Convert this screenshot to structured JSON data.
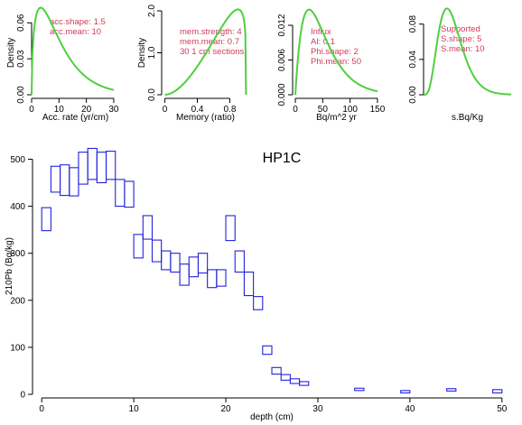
{
  "colors": {
    "density_curve": "#4fcf3f",
    "annotation": "#d23a5a",
    "box": "#2222dd",
    "axis": "#000000"
  },
  "chart_data": [
    {
      "type": "line",
      "role": "prior-panel",
      "xlabel": "Acc. rate (yr/cm)",
      "ylabel": "Density",
      "xlim": [
        0,
        32
      ],
      "ylim": [
        0,
        0.07
      ],
      "x_ticks": [
        0,
        10,
        20,
        30
      ],
      "y_ticks": [
        0.0,
        0.03,
        0.06
      ],
      "y_tick_labels": [
        "0.00",
        "0.03",
        "0.06"
      ],
      "annotations": [
        "acc.shape:  1.5",
        "acc.mean:  10"
      ],
      "curve": {
        "family": "gamma",
        "shape": 1.5,
        "mean": 10,
        "x_range": [
          0,
          30
        ]
      }
    },
    {
      "type": "line",
      "role": "prior-panel",
      "xlabel": "Memory (ratio)",
      "ylabel": "Density",
      "xlim": [
        -0.04,
        1.04
      ],
      "ylim": [
        0,
        2.0
      ],
      "x_ticks": [
        0.0,
        0.4,
        0.8
      ],
      "y_ticks": [
        0.0,
        1.0,
        2.0
      ],
      "y_tick_labels": [
        "0.0",
        "1.0",
        "2.0"
      ],
      "annotations": [
        "mem.strength: 4",
        "mem.mean: 0.7",
        "30 1 cm sections"
      ],
      "curve": {
        "family": "beta",
        "strength": 4,
        "mean": 0.7,
        "x_range": [
          0,
          1
        ]
      }
    },
    {
      "type": "line",
      "role": "prior-panel",
      "xlabel": "Bq/m^2 yr",
      "ylabel": "",
      "xlim": [
        -5,
        155
      ],
      "ylim": [
        0,
        0.0145
      ],
      "x_ticks": [
        0,
        50,
        100,
        150
      ],
      "y_ticks": [
        0.0,
        0.006,
        0.012
      ],
      "y_tick_labels": [
        "0.000",
        "0.006",
        "0.012"
      ],
      "annotations": [
        "Influx",
        "Al:  0.1",
        "Phi.shape:  2",
        "Phi.mean:  50"
      ],
      "curve": {
        "family": "gamma",
        "shape": 2,
        "mean": 50,
        "x_range": [
          0,
          150
        ]
      }
    },
    {
      "type": "line",
      "role": "prior-panel",
      "xlabel": "s.Bq/Kg",
      "ylabel": "",
      "xlim": [
        0,
        30
      ],
      "ylim": [
        0,
        0.095
      ],
      "x_ticks": [],
      "y_ticks": [
        0.0,
        0.04,
        0.08
      ],
      "y_tick_labels": [
        "0.00",
        "0.04",
        "0.08"
      ],
      "annotations": [
        "Supported",
        "S.shape:  5",
        "S.mean:  10"
      ],
      "curve": {
        "family": "gamma",
        "shape": 5,
        "mean": 10,
        "x_range": [
          0,
          30
        ]
      }
    },
    {
      "type": "box",
      "title": "HP1C",
      "xlabel": "depth (cm)",
      "ylabel": "210Pb (Bq/kg)",
      "xlim": [
        -1,
        51
      ],
      "ylim": [
        0,
        545
      ],
      "x_ticks": [
        0,
        10,
        20,
        30,
        40,
        50
      ],
      "y_ticks": [
        0,
        100,
        200,
        300,
        400,
        500
      ],
      "boxes": [
        {
          "x0": 0,
          "x1": 1,
          "y0": 348,
          "y1": 397
        },
        {
          "x0": 1,
          "x1": 2,
          "y0": 430,
          "y1": 485
        },
        {
          "x0": 2,
          "x1": 3,
          "y0": 423,
          "y1": 488
        },
        {
          "x0": 3,
          "x1": 4,
          "y0": 422,
          "y1": 482
        },
        {
          "x0": 4,
          "x1": 5,
          "y0": 447,
          "y1": 515
        },
        {
          "x0": 5,
          "x1": 6,
          "y0": 457,
          "y1": 523
        },
        {
          "x0": 6,
          "x1": 7,
          "y0": 450,
          "y1": 515
        },
        {
          "x0": 7,
          "x1": 8,
          "y0": 457,
          "y1": 517
        },
        {
          "x0": 8,
          "x1": 9,
          "y0": 400,
          "y1": 457
        },
        {
          "x0": 9,
          "x1": 10,
          "y0": 398,
          "y1": 453
        },
        {
          "x0": 10,
          "x1": 11,
          "y0": 290,
          "y1": 340
        },
        {
          "x0": 11,
          "x1": 12,
          "y0": 330,
          "y1": 380
        },
        {
          "x0": 12,
          "x1": 13,
          "y0": 282,
          "y1": 328
        },
        {
          "x0": 13,
          "x1": 14,
          "y0": 265,
          "y1": 305
        },
        {
          "x0": 14,
          "x1": 15,
          "y0": 260,
          "y1": 300
        },
        {
          "x0": 15,
          "x1": 16,
          "y0": 232,
          "y1": 277
        },
        {
          "x0": 16,
          "x1": 17,
          "y0": 250,
          "y1": 292
        },
        {
          "x0": 17,
          "x1": 18,
          "y0": 258,
          "y1": 300
        },
        {
          "x0": 18,
          "x1": 19,
          "y0": 227,
          "y1": 265
        },
        {
          "x0": 19,
          "x1": 20,
          "y0": 230,
          "y1": 265
        },
        {
          "x0": 20,
          "x1": 21,
          "y0": 327,
          "y1": 380
        },
        {
          "x0": 21,
          "x1": 22,
          "y0": 260,
          "y1": 305
        },
        {
          "x0": 22,
          "x1": 23,
          "y0": 210,
          "y1": 260
        },
        {
          "x0": 23,
          "x1": 24,
          "y0": 180,
          "y1": 208
        },
        {
          "x0": 24,
          "x1": 25,
          "y0": 85,
          "y1": 103
        },
        {
          "x0": 25,
          "x1": 26,
          "y0": 43,
          "y1": 57
        },
        {
          "x0": 26,
          "x1": 27,
          "y0": 30,
          "y1": 42
        },
        {
          "x0": 27,
          "x1": 28,
          "y0": 23,
          "y1": 33
        },
        {
          "x0": 28,
          "x1": 29,
          "y0": 19,
          "y1": 27
        },
        {
          "x0": 34,
          "x1": 35,
          "y0": 8,
          "y1": 13
        },
        {
          "x0": 39,
          "x1": 40,
          "y0": 3,
          "y1": 8
        },
        {
          "x0": 44,
          "x1": 45,
          "y0": 7,
          "y1": 12
        },
        {
          "x0": 49,
          "x1": 50,
          "y0": 3,
          "y1": 10
        }
      ]
    }
  ]
}
